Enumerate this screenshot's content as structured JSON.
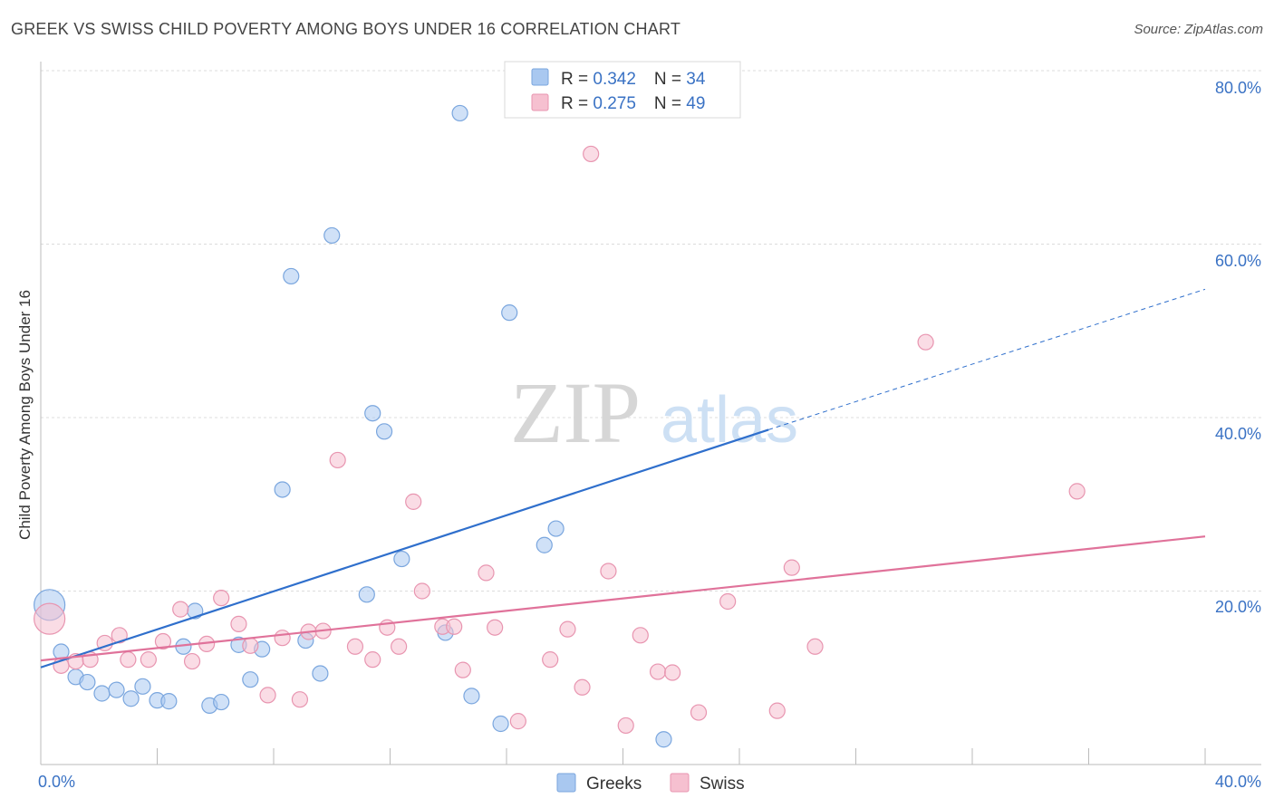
{
  "header": {
    "title": "GREEK VS SWISS CHILD POVERTY AMONG BOYS UNDER 16 CORRELATION CHART",
    "source": "Source: ZipAtlas.com"
  },
  "watermark": {
    "zip": "ZIP",
    "atlas": "atlas"
  },
  "colors": {
    "greeks_fill": "#a9c8f0",
    "greeks_stroke": "#7aa6de",
    "greeks_line": "#2f6fcc",
    "swiss_fill": "#f6c0d0",
    "swiss_stroke": "#e895b0",
    "swiss_line": "#e0729a",
    "value_text": "#3a72c4",
    "grid": "#dcdcdc"
  },
  "chart_data": {
    "type": "scatter",
    "title": "GREEK VS SWISS CHILD POVERTY AMONG BOYS UNDER 16 CORRELATION CHART",
    "xlabel": "",
    "ylabel": "Child Poverty Among Boys Under 16",
    "xlim": [
      0,
      40
    ],
    "ylim": [
      0,
      80
    ],
    "x_tick_labels": [
      "0.0%",
      "40.0%"
    ],
    "y_ticks": [
      20,
      40,
      60,
      80
    ],
    "y_tick_labels": [
      "20.0%",
      "40.0%",
      "60.0%",
      "80.0%"
    ],
    "grid": true,
    "legend_top": [
      {
        "r_label": "R = ",
        "r_value": "0.342",
        "n_label": "N = ",
        "n_value": "34"
      },
      {
        "r_label": "R = ",
        "r_value": "0.275",
        "n_label": "N = ",
        "n_value": "49"
      }
    ],
    "legend_bottom": [
      "Greeks",
      "Swiss"
    ],
    "series": [
      {
        "name": "Greeks",
        "points": [
          [
            0.3,
            18.4,
            2.0
          ],
          [
            0.7,
            13.0,
            1.0
          ],
          [
            1.2,
            10.1,
            1.0
          ],
          [
            1.6,
            9.5,
            1.0
          ],
          [
            2.1,
            8.2,
            1.0
          ],
          [
            2.6,
            8.6,
            1.0
          ],
          [
            3.1,
            7.6,
            1.0
          ],
          [
            3.5,
            9.0,
            1.0
          ],
          [
            4.0,
            7.4,
            1.0
          ],
          [
            4.4,
            7.3,
            1.0
          ],
          [
            4.9,
            13.6,
            1.0
          ],
          [
            5.3,
            17.7,
            1.0
          ],
          [
            5.8,
            6.8,
            1.0
          ],
          [
            6.2,
            7.2,
            1.0
          ],
          [
            6.8,
            13.8,
            1.0
          ],
          [
            7.2,
            9.8,
            1.0
          ],
          [
            7.6,
            13.3,
            1.0
          ],
          [
            8.3,
            31.7,
            1.0
          ],
          [
            8.6,
            56.3,
            1.0
          ],
          [
            9.1,
            14.3,
            1.0
          ],
          [
            9.6,
            10.5,
            1.0
          ],
          [
            10.0,
            61.0,
            1.0
          ],
          [
            11.2,
            19.6,
            1.0
          ],
          [
            11.4,
            40.5,
            1.0
          ],
          [
            11.8,
            38.4,
            1.0
          ],
          [
            12.4,
            23.7,
            1.0
          ],
          [
            13.9,
            15.2,
            1.0
          ],
          [
            14.4,
            75.1,
            1.0
          ],
          [
            14.8,
            7.9,
            1.0
          ],
          [
            15.8,
            4.7,
            1.0
          ],
          [
            16.1,
            52.1,
            1.0
          ],
          [
            17.3,
            25.3,
            1.0
          ],
          [
            17.7,
            27.2,
            1.0
          ],
          [
            21.4,
            2.9,
            1.0
          ]
        ],
        "trend": {
          "x0": 0,
          "y0": 11.2,
          "x1": 25,
          "y1": 38.6,
          "dash_x1": 40,
          "dash_y1": 54.8
        }
      },
      {
        "name": "Swiss",
        "points": [
          [
            0.3,
            16.8,
            2.0
          ],
          [
            0.7,
            11.4,
            1.0
          ],
          [
            1.2,
            11.9,
            1.0
          ],
          [
            1.7,
            12.1,
            1.0
          ],
          [
            2.2,
            14.0,
            1.0
          ],
          [
            2.7,
            14.9,
            1.0
          ],
          [
            3.0,
            12.1,
            1.0
          ],
          [
            3.7,
            12.1,
            1.0
          ],
          [
            4.2,
            14.2,
            1.0
          ],
          [
            4.8,
            17.9,
            1.0
          ],
          [
            5.2,
            11.9,
            1.0
          ],
          [
            5.7,
            13.9,
            1.0
          ],
          [
            6.2,
            19.2,
            1.0
          ],
          [
            6.8,
            16.2,
            1.0
          ],
          [
            7.2,
            13.7,
            1.0
          ],
          [
            7.8,
            8.0,
            1.0
          ],
          [
            8.3,
            14.6,
            1.0
          ],
          [
            8.9,
            7.5,
            1.0
          ],
          [
            9.2,
            15.3,
            1.0
          ],
          [
            9.7,
            15.4,
            1.0
          ],
          [
            10.2,
            35.1,
            1.0
          ],
          [
            10.8,
            13.6,
            1.0
          ],
          [
            11.4,
            12.1,
            1.0
          ],
          [
            11.9,
            15.8,
            1.0
          ],
          [
            12.3,
            13.6,
            1.0
          ],
          [
            12.8,
            30.3,
            1.0
          ],
          [
            13.1,
            20.0,
            1.0
          ],
          [
            13.8,
            15.9,
            1.0
          ],
          [
            14.2,
            15.9,
            1.0
          ],
          [
            14.5,
            10.9,
            1.0
          ],
          [
            15.3,
            22.1,
            1.0
          ],
          [
            15.6,
            15.8,
            1.0
          ],
          [
            16.4,
            5.0,
            1.0
          ],
          [
            17.5,
            12.1,
            1.0
          ],
          [
            18.1,
            15.6,
            1.0
          ],
          [
            18.6,
            8.9,
            1.0
          ],
          [
            18.9,
            70.4,
            1.0
          ],
          [
            19.5,
            22.3,
            1.0
          ],
          [
            20.1,
            4.5,
            1.0
          ],
          [
            20.6,
            14.9,
            1.0
          ],
          [
            21.2,
            10.7,
            1.0
          ],
          [
            21.7,
            10.6,
            1.0
          ],
          [
            22.6,
            6.0,
            1.0
          ],
          [
            23.6,
            18.8,
            1.0
          ],
          [
            25.3,
            6.2,
            1.0
          ],
          [
            25.8,
            22.7,
            1.0
          ],
          [
            26.6,
            13.6,
            1.0
          ],
          [
            30.4,
            48.7,
            1.0
          ],
          [
            35.6,
            31.5,
            1.0
          ]
        ],
        "trend": {
          "x0": 0,
          "y0": 12.0,
          "x1": 40,
          "y1": 26.3
        }
      }
    ]
  }
}
